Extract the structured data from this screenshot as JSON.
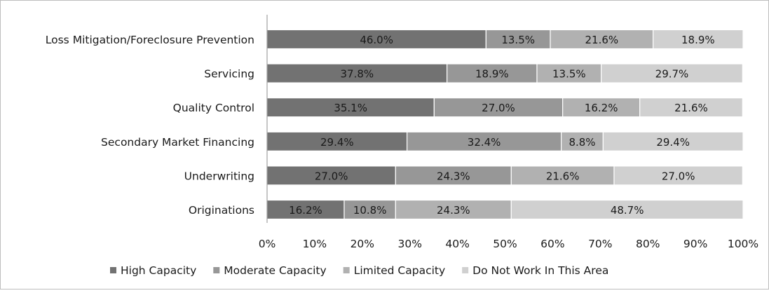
{
  "chart_data": {
    "type": "bar",
    "orientation": "horizontal",
    "stacked": true,
    "categories": [
      "Loss Mitigation/Foreclosure Prevention",
      "Servicing",
      "Quality Control",
      "Secondary Market Financing",
      "Underwriting",
      "Originations"
    ],
    "series": [
      {
        "name": "High Capacity",
        "color": "#727272",
        "values": [
          46.0,
          37.8,
          35.1,
          29.4,
          27.0,
          16.2
        ],
        "labels": [
          "46.0%",
          "37.8%",
          "35.1%",
          "29.4%",
          "27.0%",
          "16.2%"
        ]
      },
      {
        "name": "Moderate Capacity",
        "color": "#979797",
        "values": [
          13.5,
          18.9,
          27.0,
          32.4,
          24.3,
          10.8
        ],
        "labels": [
          "13.5%",
          "18.9%",
          "27.0%",
          "32.4%",
          "24.3%",
          "10.8%"
        ]
      },
      {
        "name": "Limited Capacity",
        "color": "#b1b1b1",
        "values": [
          21.6,
          13.5,
          16.2,
          8.8,
          21.6,
          24.3
        ],
        "labels": [
          "21.6%",
          "13.5%",
          "16.2%",
          "8.8%",
          "21.6%",
          "24.3%"
        ]
      },
      {
        "name": "Do Not Work In This Area",
        "color": "#d0d0d0",
        "values": [
          18.9,
          29.7,
          21.6,
          29.4,
          27.0,
          48.7
        ],
        "labels": [
          "18.9%",
          "29.7%",
          "21.6%",
          "29.4%",
          "27.0%",
          "48.7%"
        ]
      }
    ],
    "xlim": [
      0,
      100
    ],
    "xticks": [
      "0%",
      "10%",
      "20%",
      "30%",
      "40%",
      "50%",
      "60%",
      "70%",
      "80%",
      "90%",
      "100%"
    ],
    "legend": "bottom",
    "grid": false,
    "title": "",
    "xlabel": "",
    "ylabel": ""
  }
}
